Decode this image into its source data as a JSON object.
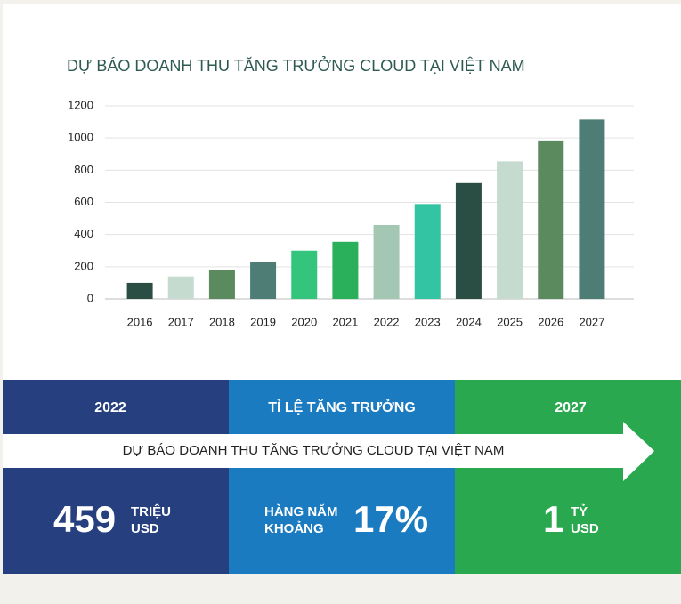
{
  "chart_data": {
    "type": "bar",
    "title": "DỰ BÁO DOANH THU TĂNG TRƯỞNG CLOUD TẠI VIỆT NAM",
    "categories": [
      "2016",
      "2017",
      "2018",
      "2019",
      "2020",
      "2021",
      "2022",
      "2023",
      "2024",
      "2025",
      "2026",
      "2027"
    ],
    "values": [
      100,
      140,
      180,
      230,
      300,
      355,
      459,
      590,
      720,
      855,
      985,
      1115
    ],
    "colors": [
      "#2a4d44",
      "#c5dbcf",
      "#5a8a5e",
      "#4d7d75",
      "#34c57c",
      "#2aaf5a",
      "#a3c7b2",
      "#33c4a4",
      "#2a4d44",
      "#c5dbcf",
      "#5a8a5e",
      "#4d7d75"
    ],
    "ylim": [
      0,
      1200
    ],
    "yticks": [
      0,
      200,
      400,
      600,
      800,
      1000,
      1200
    ],
    "grid": true
  },
  "panel": {
    "headers": [
      "2022",
      "TỈ LỆ TĂNG TRƯỞNG",
      "2027"
    ],
    "arrow_text": "DỰ BÁO DOANH THU TĂNG TRƯỞNG CLOUD TẠI VIỆT NAM",
    "left": {
      "number": "459",
      "unit_top": "TRIỆU",
      "unit_bottom": "USD"
    },
    "middle": {
      "prefix_top": "HÀNG NĂM",
      "prefix_bottom": "KHOẢNG",
      "number": "17%"
    },
    "right": {
      "number": "1",
      "unit_top": "TỶ",
      "unit_bottom": "USD"
    }
  }
}
